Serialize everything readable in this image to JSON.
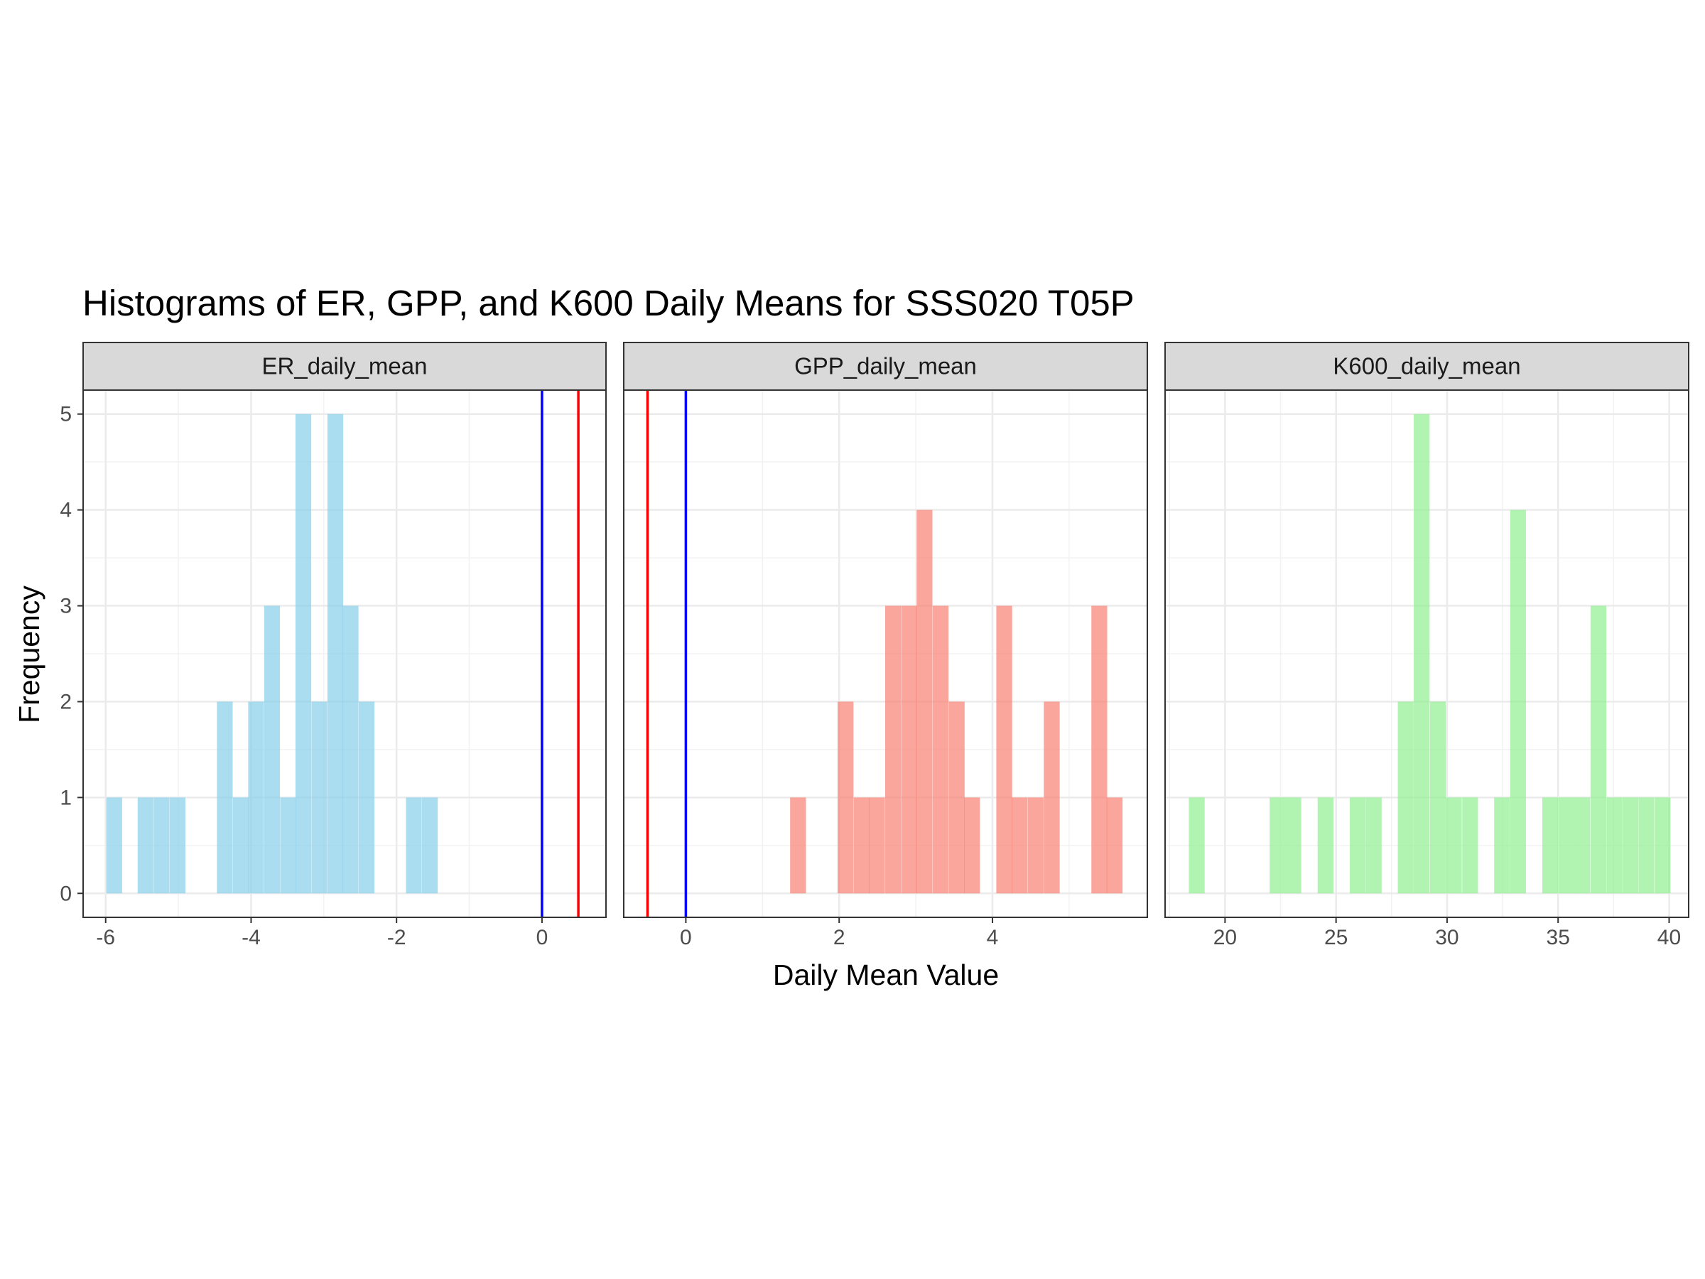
{
  "chart_data": {
    "type": "bar",
    "title": "Histograms of ER, GPP, and K600 Daily Means for SSS020 T05P",
    "xlabel": "Daily Mean Value",
    "ylabel": "Frequency",
    "ylim": [
      -0.25,
      5.25
    ],
    "yticks": [
      0,
      1,
      2,
      3,
      4,
      5
    ],
    "grid": true,
    "facets": [
      {
        "name": "ER_daily_mean",
        "fill": "#87CEEB",
        "xlim": [
          -6.31,
          0.88
        ],
        "xticks": [
          -6,
          -4,
          -2,
          0
        ],
        "bin_width": 0.2166,
        "bins": [
          {
            "x0": -5.99,
            "count": 1
          },
          {
            "x0": -5.56,
            "count": 1
          },
          {
            "x0": -5.34,
            "count": 1
          },
          {
            "x0": -5.12,
            "count": 1
          },
          {
            "x0": -4.47,
            "count": 2
          },
          {
            "x0": -4.25,
            "count": 1
          },
          {
            "x0": -4.04,
            "count": 2
          },
          {
            "x0": -3.82,
            "count": 3
          },
          {
            "x0": -3.6,
            "count": 1
          },
          {
            "x0": -3.39,
            "count": 5
          },
          {
            "x0": -3.17,
            "count": 2
          },
          {
            "x0": -2.95,
            "count": 5
          },
          {
            "x0": -2.74,
            "count": 3
          },
          {
            "x0": -2.52,
            "count": 2
          },
          {
            "x0": -1.87,
            "count": 1
          },
          {
            "x0": -1.65,
            "count": 1
          }
        ],
        "vlines": [
          {
            "x": 0,
            "color": "#0000FF"
          },
          {
            "x": 0.5,
            "color": "#FF0000"
          }
        ]
      },
      {
        "name": "GPP_daily_mean",
        "fill": "#FA8072",
        "xlim": [
          -0.81,
          6.02
        ],
        "xticks": [
          0,
          2,
          4
        ],
        "bin_width": 0.2067,
        "bins": [
          {
            "x0": 1.36,
            "count": 1
          },
          {
            "x0": 1.98,
            "count": 2
          },
          {
            "x0": 2.19,
            "count": 1
          },
          {
            "x0": 2.39,
            "count": 1
          },
          {
            "x0": 2.6,
            "count": 3
          },
          {
            "x0": 2.81,
            "count": 3
          },
          {
            "x0": 3.01,
            "count": 4
          },
          {
            "x0": 3.22,
            "count": 3
          },
          {
            "x0": 3.43,
            "count": 2
          },
          {
            "x0": 3.63,
            "count": 1
          },
          {
            "x0": 4.05,
            "count": 3
          },
          {
            "x0": 4.25,
            "count": 1
          },
          {
            "x0": 4.46,
            "count": 1
          },
          {
            "x0": 4.67,
            "count": 2
          },
          {
            "x0": 5.29,
            "count": 3
          },
          {
            "x0": 5.49,
            "count": 1
          }
        ],
        "vlines": [
          {
            "x": 0,
            "color": "#0000FF"
          },
          {
            "x": -0.5,
            "color": "#FF0000"
          }
        ]
      },
      {
        "name": "K600_daily_mean",
        "fill": "#90EE90",
        "xlim": [
          17.3,
          40.88
        ],
        "xticks": [
          20,
          25,
          30,
          35,
          40
        ],
        "bin_width": 0.7125,
        "bins": [
          {
            "x0": 18.37,
            "count": 1
          },
          {
            "x0": 22.01,
            "count": 1
          },
          {
            "x0": 22.72,
            "count": 1
          },
          {
            "x0": 24.17,
            "count": 1
          },
          {
            "x0": 25.62,
            "count": 1
          },
          {
            "x0": 26.34,
            "count": 1
          },
          {
            "x0": 27.78,
            "count": 2
          },
          {
            "x0": 28.5,
            "count": 5
          },
          {
            "x0": 29.23,
            "count": 2
          },
          {
            "x0": 29.95,
            "count": 1
          },
          {
            "x0": 30.68,
            "count": 1
          },
          {
            "x0": 32.12,
            "count": 1
          },
          {
            "x0": 32.84,
            "count": 4
          },
          {
            "x0": 34.29,
            "count": 1
          },
          {
            "x0": 35.02,
            "count": 1
          },
          {
            "x0": 35.73,
            "count": 1
          },
          {
            "x0": 36.46,
            "count": 3
          },
          {
            "x0": 37.18,
            "count": 1
          },
          {
            "x0": 37.9,
            "count": 1
          },
          {
            "x0": 38.62,
            "count": 1
          },
          {
            "x0": 39.35,
            "count": 1
          }
        ],
        "vlines": []
      }
    ]
  }
}
